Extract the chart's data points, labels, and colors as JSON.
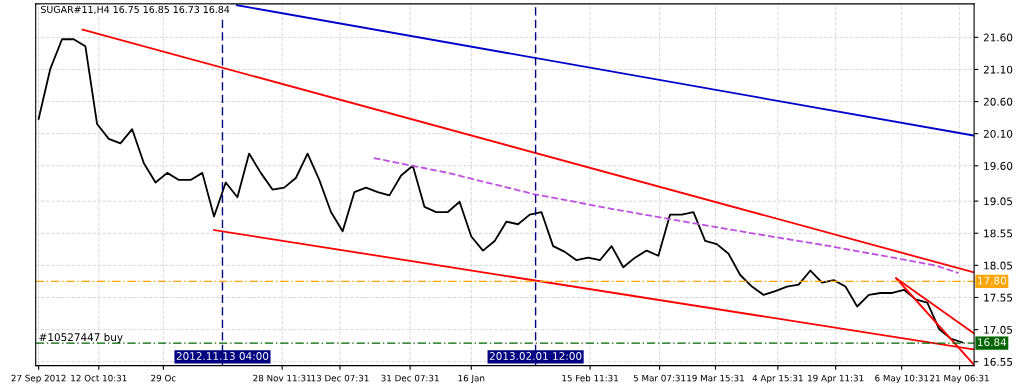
{
  "chart_data": {
    "type": "line",
    "title": "SUGAR#11,H4 16.75 16.85 16.73 16.84",
    "grid": true,
    "legend": false,
    "marker": "none",
    "xlim": [
      "2012-09-26T06:00",
      "2013-05-25T00:00"
    ],
    "xticks": [
      {
        "value": "2012-09-27T00:00",
        "label": "27 Sep 2012"
      },
      {
        "value": "2012-10-12T10:31",
        "label": "12 Oct 10:31"
      },
      {
        "value": "2012-10-29T00:00",
        "label": "29 Oc"
      },
      {
        "value": "2012-11-28T11:31",
        "label": "28 Nov 11:31"
      },
      {
        "value": "2012-12-13T07:31",
        "label": "13 Dec 07:31"
      },
      {
        "value": "2012-12-31T07:31",
        "label": "31 Dec 07:31"
      },
      {
        "value": "2013-01-16T00:00",
        "label": "16 Jan"
      },
      {
        "value": "2013-02-15T11:31",
        "label": "15 Feb 11:31"
      },
      {
        "value": "2013-03-05T07:31",
        "label": "5 Mar 07:31"
      },
      {
        "value": "2013-03-19T15:31",
        "label": "19 Mar 15:31"
      },
      {
        "value": "2013-04-04T15:31",
        "label": "4 Apr 15:31"
      },
      {
        "value": "2013-04-19T11:31",
        "label": "19 Apr 11:31"
      },
      {
        "value": "2013-05-06T10:31",
        "label": "6 May 10:31"
      },
      {
        "value": "2013-05-21T06:31",
        "label": "21 May 06:31"
      }
    ],
    "ylim": [
      16.49,
      22.12
    ],
    "yticks": [
      16.55,
      17.05,
      17.55,
      18.05,
      18.55,
      19.05,
      {
        "value": 19.6,
        "label": "19.60"
      },
      {
        "value": 20.1,
        "label": "20.10"
      },
      {
        "value": 20.6,
        "label": "20.60"
      },
      {
        "value": 21.1,
        "label": "21.10"
      },
      {
        "value": 21.6,
        "label": "21.60"
      }
    ],
    "series": [
      {
        "color": "#000000",
        "line_style": "solid",
        "x": [
          "2012-09-27",
          "2012-09-30",
          "2012-10-03",
          "2012-10-06",
          "2012-10-09",
          "2012-10-12",
          "2012-10-15",
          "2012-10-18",
          "2012-10-21",
          "2012-10-24",
          "2012-10-27",
          "2012-10-30",
          "2012-11-02",
          "2012-11-05",
          "2012-11-08",
          "2012-11-11",
          "2012-11-14",
          "2012-11-17",
          "2012-11-20",
          "2012-11-23",
          "2012-11-26",
          "2012-11-29",
          "2012-12-02",
          "2012-12-05",
          "2012-12-08",
          "2012-12-11",
          "2012-12-14",
          "2012-12-17",
          "2012-12-20",
          "2012-12-23",
          "2012-12-26",
          "2012-12-29",
          "2013-01-01",
          "2013-01-04",
          "2013-01-07",
          "2013-01-10",
          "2013-01-13",
          "2013-01-16",
          "2013-01-19",
          "2013-01-22",
          "2013-01-25",
          "2013-01-28",
          "2013-01-31",
          "2013-02-03",
          "2013-02-06",
          "2013-02-09",
          "2013-02-12",
          "2013-02-15",
          "2013-02-18",
          "2013-02-21",
          "2013-02-24",
          "2013-02-27",
          "2013-03-02",
          "2013-03-05",
          "2013-03-08",
          "2013-03-11",
          "2013-03-14",
          "2013-03-17",
          "2013-03-20",
          "2013-03-23",
          "2013-03-26",
          "2013-03-29",
          "2013-04-01",
          "2013-04-04",
          "2013-04-07",
          "2013-04-10",
          "2013-04-13",
          "2013-04-16",
          "2013-04-19",
          "2013-04-22",
          "2013-04-25",
          "2013-04-28",
          "2013-05-01",
          "2013-05-04",
          "2013-05-07",
          "2013-05-10",
          "2013-05-13",
          "2013-05-16",
          "2013-05-19",
          "2013-05-22"
        ],
        "values": [
          20.33,
          21.11,
          21.57,
          21.57,
          21.46,
          20.25,
          20.02,
          19.95,
          20.17,
          19.64,
          19.34,
          19.49,
          19.38,
          19.38,
          19.49,
          18.81,
          19.34,
          19.11,
          19.79,
          19.49,
          19.23,
          19.26,
          19.41,
          19.79,
          19.38,
          18.88,
          18.58,
          19.19,
          19.26,
          19.19,
          19.14,
          19.45,
          19.6,
          18.96,
          18.88,
          18.88,
          19.04,
          18.5,
          18.28,
          18.43,
          18.73,
          18.69,
          18.84,
          18.88,
          18.35,
          18.26,
          18.13,
          18.17,
          18.13,
          18.35,
          18.02,
          18.17,
          18.28,
          18.2,
          18.84,
          18.84,
          18.88,
          18.43,
          18.38,
          18.23,
          17.9,
          17.72,
          17.59,
          17.65,
          17.72,
          17.75,
          17.97,
          17.78,
          17.82,
          17.72,
          17.41,
          17.59,
          17.62,
          17.62,
          17.67,
          17.52,
          17.47,
          17.06,
          16.91,
          16.85
        ]
      },
      {
        "color": "#0000cd",
        "line_style": "solid",
        "x": [
          "2012-11-16T21:00",
          "2013-05-25T00:00"
        ],
        "values": [
          22.1,
          20.07
        ]
      },
      {
        "color": "#ff0000",
        "line_style": "solid",
        "x": [
          "2012-10-08T07:00",
          "2013-05-25T00:00"
        ],
        "values": [
          21.72,
          17.94
        ]
      },
      {
        "color": "#ff0000",
        "line_style": "solid",
        "x": [
          "2012-11-11T00:00",
          "2013-05-25T00:00"
        ],
        "values": [
          18.6,
          16.74
        ]
      },
      {
        "color": "#ff0000",
        "line_style": "solid",
        "x": [
          "2013-05-05T00:00",
          "2013-05-25T00:00"
        ],
        "values": [
          17.85,
          16.99
        ]
      },
      {
        "color": "#ff0000",
        "line_style": "solid",
        "x": [
          "2013-05-05T00:00",
          "2013-05-25T00:00"
        ],
        "values": [
          17.85,
          16.5
        ]
      },
      {
        "color": "#c050e0",
        "line_style": "dashed",
        "x": [
          "2012-12-22",
          "2013-01-10",
          "2013-02-01",
          "2013-02-21",
          "2013-03-07",
          "2013-03-27",
          "2013-04-18",
          "2013-05-15",
          "2013-05-21"
        ],
        "values": [
          19.72,
          19.49,
          19.16,
          18.93,
          18.78,
          18.57,
          18.35,
          18.05,
          17.93
        ]
      }
    ],
    "ref_lines": [
      {
        "axis": "x",
        "value": "2012-11-13T04:00",
        "label": "2012.11.13 04:00",
        "color": "#000080",
        "line_style": "dashed"
      },
      {
        "axis": "x",
        "value": "2013-02-01T12:00",
        "label": "2013.02.01 12:00",
        "color": "#000080",
        "line_style": "dashed"
      },
      {
        "axis": "y",
        "value": 17.8,
        "label": "17.80",
        "color": "#ffa500",
        "line_style": "dashed"
      },
      {
        "axis": "y",
        "value": 16.84,
        "label": "16.84",
        "color": "#006400",
        "line_style": "dashed"
      }
    ],
    "annotations": [
      {
        "text": "#10527447 buy",
        "x": "2012-09-27T00:00",
        "y": 16.84
      }
    ]
  }
}
